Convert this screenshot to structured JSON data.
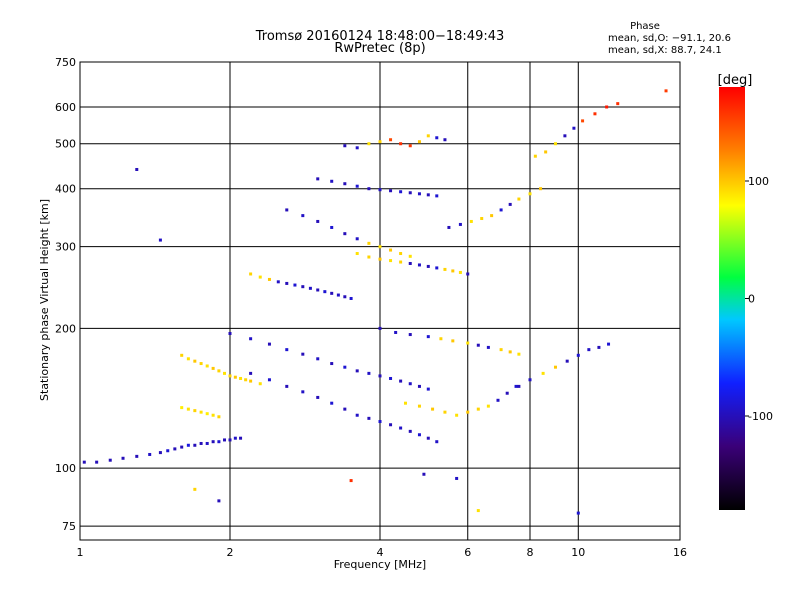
{
  "chart_data": {
    "type": "scatter",
    "title": "Tromsø 20160124 18:48:00−18:49:43",
    "subtitle": "RwPretec (8p)",
    "xlabel": "Frequency [MHz]",
    "ylabel": "Stationary phase Virtual Height [km]",
    "x_scale": "log",
    "y_scale": "log",
    "xlim": [
      1,
      16
    ],
    "ylim": [
      70,
      750
    ],
    "x_ticks": [
      1,
      2,
      4,
      6,
      8,
      10,
      16
    ],
    "y_ticks": [
      75,
      100,
      200,
      300,
      400,
      500,
      600,
      750
    ],
    "grid": true,
    "stats": {
      "heading": "Phase",
      "line1": "mean, sd,O: −91.1, 20.6",
      "line2": "mean, sd,X: 88.7, 24.1"
    },
    "colorbar": {
      "label": "[deg]",
      "range": [
        -180,
        180
      ],
      "ticks": [
        100,
        0,
        -100
      ],
      "colors": [
        "#000000",
        "#3a0078",
        "#1020ff",
        "#00c8ff",
        "#00ff40",
        "#ffff00",
        "#ff8000",
        "#ff0000"
      ]
    },
    "series": [
      {
        "x": [
          1.02,
          1.08,
          1.15,
          1.22,
          1.3,
          1.38,
          1.45,
          1.5,
          1.55,
          1.6,
          1.65,
          1.7,
          1.75,
          1.8,
          1.85,
          1.9,
          1.95,
          2.0,
          2.05,
          2.1
        ],
        "y": [
          103,
          103,
          104,
          105,
          106,
          107,
          108,
          109,
          110,
          111,
          112,
          112,
          113,
          113,
          114,
          114,
          115,
          115,
          116,
          116
        ],
        "phase": [
          -100,
          -100,
          -100,
          -100,
          -100,
          -95,
          -100,
          -90,
          -100,
          -100,
          -85,
          -100,
          -100,
          -95,
          -100,
          -90,
          -100,
          -100,
          -95,
          -100
        ]
      },
      {
        "x": [
          1.6,
          1.65,
          1.7,
          1.75,
          1.8,
          1.85,
          1.9,
          1.95,
          2.0,
          2.05,
          2.1,
          2.15,
          2.2,
          2.3
        ],
        "y": [
          175,
          172,
          170,
          168,
          166,
          164,
          162,
          160,
          158,
          157,
          156,
          155,
          154,
          152
        ],
        "phase": [
          95,
          90,
          100,
          95,
          90,
          100,
          95,
          90,
          95,
          100,
          90,
          95,
          100,
          90
        ]
      },
      {
        "x": [
          1.6,
          1.65,
          1.7,
          1.75,
          1.8,
          1.85,
          1.9
        ],
        "y": [
          135,
          134,
          133,
          132,
          131,
          130,
          129
        ],
        "phase": [
          85,
          90,
          95,
          90,
          85,
          90,
          95
        ]
      },
      {
        "x": [
          2.2,
          2.3,
          2.4,
          2.5,
          2.6,
          2.7,
          2.8,
          2.9,
          3.0,
          3.1,
          3.2,
          3.3,
          3.4,
          3.5
        ],
        "y": [
          262,
          258,
          255,
          252,
          250,
          248,
          246,
          244,
          242,
          240,
          238,
          236,
          234,
          232
        ],
        "phase": [
          95,
          90,
          100,
          -95,
          -100,
          -90,
          -100,
          -95,
          -100,
          -90,
          -100,
          -95,
          -100,
          -90
        ]
      },
      {
        "x": [
          2.0,
          2.2,
          2.4,
          2.6,
          2.8,
          3.0,
          3.2,
          3.4,
          3.6,
          3.8,
          4.0,
          4.2,
          4.4,
          4.6,
          4.8,
          5.0
        ],
        "y": [
          195,
          190,
          185,
          180,
          176,
          172,
          168,
          165,
          162,
          160,
          158,
          156,
          154,
          152,
          150,
          148
        ],
        "phase": [
          -100,
          -95,
          -100,
          -90,
          -100,
          -95,
          -100,
          -90,
          -100,
          -95,
          -100,
          -90,
          -100,
          -95,
          -100,
          -90
        ]
      },
      {
        "x": [
          2.2,
          2.4,
          2.6,
          2.8,
          3.0,
          3.2,
          3.4,
          3.6,
          3.8,
          4.0,
          4.2,
          4.4,
          4.6,
          4.8,
          5.0,
          5.2
        ],
        "y": [
          160,
          155,
          150,
          146,
          142,
          138,
          134,
          130,
          128,
          126,
          124,
          122,
          120,
          118,
          116,
          114
        ],
        "phase": [
          -100,
          -90,
          -100,
          -95,
          -100,
          -90,
          -100,
          -95,
          -100,
          -90,
          -100,
          -95,
          -100,
          -90,
          -100,
          -95
        ]
      },
      {
        "x": [
          2.6,
          2.8,
          3.0,
          3.2,
          3.4,
          3.6,
          3.8,
          4.0,
          4.2,
          4.4,
          4.6
        ],
        "y": [
          360,
          350,
          340,
          330,
          320,
          312,
          305,
          300,
          295,
          290,
          286
        ],
        "phase": [
          -100,
          -95,
          -100,
          -90,
          -100,
          -95,
          95,
          90,
          100,
          95,
          90
        ]
      },
      {
        "x": [
          3.0,
          3.2,
          3.4,
          3.6,
          3.8,
          4.0,
          4.2,
          4.4,
          4.6,
          4.8,
          5.0,
          5.2
        ],
        "y": [
          420,
          415,
          410,
          405,
          400,
          398,
          396,
          394,
          392,
          390,
          388,
          386
        ],
        "phase": [
          -100,
          -95,
          -100,
          -90,
          -100,
          -95,
          -100,
          -90,
          -100,
          -95,
          -100,
          -90
        ]
      },
      {
        "x": [
          3.4,
          3.6,
          3.8,
          4.0,
          4.2,
          4.4,
          4.6,
          4.8,
          5.0,
          5.2,
          5.4
        ],
        "y": [
          495,
          490,
          500,
          505,
          510,
          500,
          495,
          505,
          520,
          515,
          510
        ],
        "phase": [
          -100,
          -95,
          90,
          95,
          150,
          160,
          155,
          100,
          95,
          -90,
          -100
        ]
      },
      {
        "x": [
          3.6,
          3.8,
          4.0,
          4.2,
          4.4,
          4.6,
          4.8,
          5.0,
          5.2,
          5.4,
          5.6,
          5.8,
          6.0
        ],
        "y": [
          290,
          285,
          282,
          280,
          278,
          276,
          274,
          272,
          270,
          268,
          266,
          264,
          262
        ],
        "phase": [
          90,
          95,
          100,
          90,
          95,
          -100,
          -95,
          -100,
          -90,
          95,
          100,
          90,
          -100
        ]
      },
      {
        "x": [
          4.0,
          4.3,
          4.6,
          5.0,
          5.3,
          5.6,
          6.0,
          6.3,
          6.6,
          7.0,
          7.3,
          7.6
        ],
        "y": [
          200,
          196,
          194,
          192,
          190,
          188,
          186,
          184,
          182,
          180,
          178,
          176
        ],
        "phase": [
          -100,
          -95,
          -100,
          -90,
          95,
          100,
          90,
          -100,
          -95,
          95,
          100,
          90
        ]
      },
      {
        "x": [
          4.5,
          4.8,
          5.1,
          5.4,
          5.7,
          6.0,
          6.3,
          6.6,
          6.9,
          7.2,
          7.5
        ],
        "y": [
          138,
          136,
          134,
          132,
          130,
          132,
          134,
          136,
          140,
          145,
          150
        ],
        "phase": [
          90,
          95,
          100,
          95,
          90,
          100,
          95,
          90,
          -95,
          -100,
          -90
        ]
      },
      {
        "x": [
          5.5,
          5.8,
          6.1,
          6.4,
          6.7,
          7.0,
          7.3,
          7.6,
          8.0,
          8.4
        ],
        "y": [
          330,
          335,
          340,
          345,
          350,
          360,
          370,
          380,
          390,
          400
        ],
        "phase": [
          -100,
          -95,
          90,
          95,
          100,
          -90,
          -100,
          95,
          90,
          100
        ]
      },
      {
        "x": [
          7.6,
          8.0,
          8.5,
          9.0,
          9.5,
          10.0,
          10.5,
          11.0,
          11.5
        ],
        "y": [
          150,
          155,
          160,
          165,
          170,
          175,
          180,
          182,
          185
        ],
        "phase": [
          -100,
          -95,
          90,
          100,
          -100,
          -90,
          -95,
          -100,
          -90
        ]
      },
      {
        "x": [
          8.2,
          8.6,
          9.0,
          9.4,
          9.8,
          10.2,
          10.8,
          11.4,
          12.0,
          15.0
        ],
        "y": [
          470,
          480,
          500,
          520,
          540,
          560,
          580,
          600,
          610,
          650
        ],
        "phase": [
          95,
          100,
          90,
          -100,
          -95,
          150,
          160,
          170,
          160,
          155
        ]
      },
      {
        "x": [
          1.3,
          1.45,
          1.7,
          1.9,
          3.5,
          4.9,
          5.7,
          6.3,
          10.0
        ],
        "y": [
          440,
          310,
          90,
          85,
          94,
          97,
          95,
          81,
          80
        ],
        "phase": [
          -100,
          -95,
          95,
          -100,
          160,
          -100,
          -95,
          90,
          -90
        ]
      }
    ]
  }
}
